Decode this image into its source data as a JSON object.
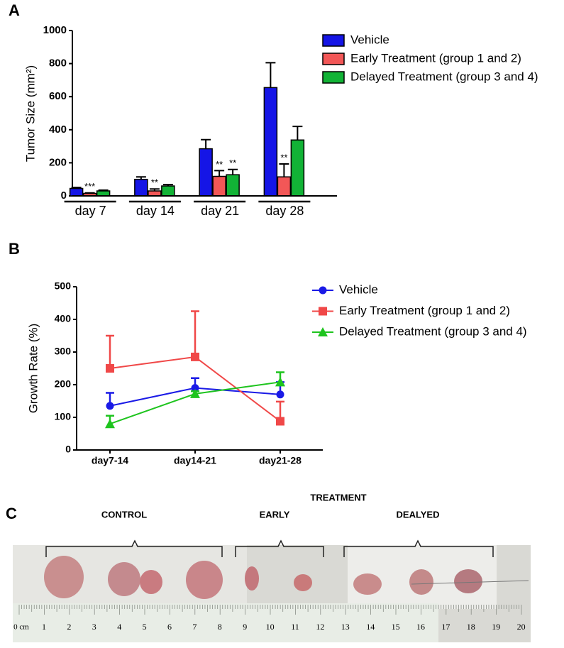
{
  "chart_data": [
    {
      "type": "bar",
      "panel": "A",
      "y_label": "Tumor Size (mm²)",
      "categories": [
        "day 7",
        "day 14",
        "day 21",
        "day 28"
      ],
      "ylim": [
        0,
        1000
      ],
      "yticks": [
        0,
        200,
        400,
        600,
        800,
        1000
      ],
      "legend": "right",
      "series": [
        {
          "name": "Vehicle",
          "color": "#1515e6",
          "values": [
            45,
            100,
            285,
            655
          ],
          "errors": [
            6,
            15,
            55,
            150
          ],
          "significance": [
            null,
            null,
            null,
            null
          ]
        },
        {
          "name": "Early Treatment (group 1 and 2)",
          "color": "#f25757",
          "values": [
            15,
            30,
            118,
            115
          ],
          "errors": [
            3,
            12,
            35,
            78
          ],
          "significance": [
            "***",
            "**",
            "**",
            "**"
          ]
        },
        {
          "name": "Delayed Treatment (group 3 and 4)",
          "color": "#12b336",
          "values": [
            30,
            60,
            128,
            338
          ],
          "errors": [
            5,
            8,
            32,
            82
          ],
          "significance": [
            null,
            null,
            "**",
            null
          ]
        }
      ]
    },
    {
      "type": "line",
      "panel": "B",
      "y_label": "Growth Rate (%)",
      "categories": [
        "day7-14",
        "day14-21",
        "day21-28"
      ],
      "ylim": [
        0,
        500
      ],
      "yticks": [
        0,
        100,
        200,
        300,
        400,
        500
      ],
      "legend": "right",
      "series": [
        {
          "name": "Vehicle",
          "color": "#1a1ae6",
          "marker": "circle",
          "values": [
            135,
            190,
            170
          ],
          "errors": [
            40,
            30,
            38
          ]
        },
        {
          "name": "Early Treatment (group 1 and 2)",
          "color": "#f04848",
          "marker": "square",
          "values": [
            250,
            285,
            88
          ],
          "errors": [
            100,
            140,
            60
          ]
        },
        {
          "name": "Delayed Treatment (group 3 and 4)",
          "color": "#1ec41e",
          "marker": "triangle",
          "values": [
            80,
            172,
            208
          ],
          "errors": [
            25,
            8,
            30
          ]
        }
      ]
    }
  ],
  "photo": {
    "panel": "C",
    "groups": [
      "CONTROL",
      "EARLY",
      "DEALYED"
    ],
    "heading": "TREATMENT",
    "ruler_unit": "0 cm",
    "ruler_numbers": [
      1,
      2,
      3,
      4,
      5,
      6,
      7,
      8,
      9,
      10,
      11,
      12,
      13,
      14,
      15,
      16,
      17,
      18,
      19,
      20
    ]
  }
}
